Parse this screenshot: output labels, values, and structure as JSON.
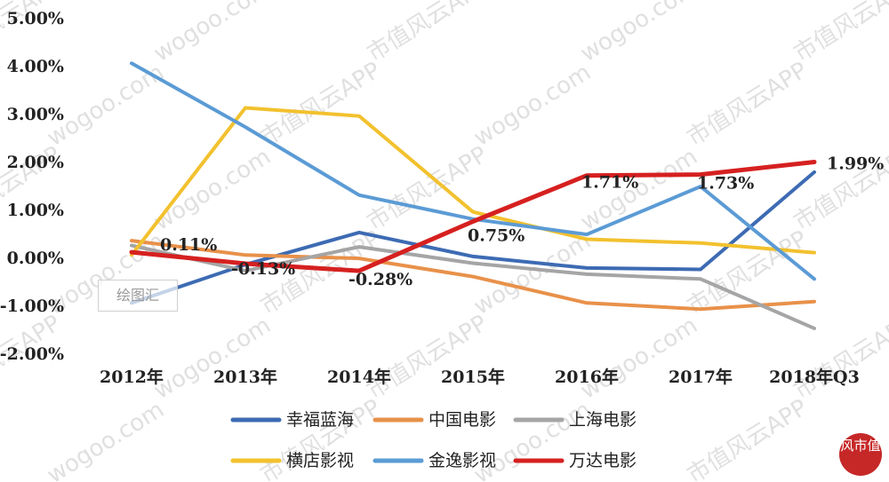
{
  "chart_data": {
    "type": "line",
    "categories": [
      "2012年",
      "2013年",
      "2014年",
      "2015年",
      "2016年",
      "2017年",
      "2018年Q3"
    ],
    "ylim": [
      -2,
      5
    ],
    "yticks": [
      "-2.00%",
      "-1.00%",
      "0.00%",
      "1.00%",
      "2.00%",
      "3.00%",
      "4.00%",
      "5.00%"
    ],
    "grid": false,
    "legend_position": "bottom",
    "series": [
      {
        "name": "幸福蓝海",
        "color": "#3d6bb3",
        "values": [
          -0.95,
          -0.15,
          0.52,
          0.02,
          -0.22,
          -0.25,
          1.78
        ]
      },
      {
        "name": "中国电影",
        "color": "#e8914a",
        "values": [
          0.35,
          0.05,
          -0.02,
          -0.4,
          -0.95,
          -1.08,
          -0.92
        ]
      },
      {
        "name": "上海电影",
        "color": "#a5a5a5",
        "values": [
          0.25,
          -0.28,
          0.22,
          -0.12,
          -0.35,
          -0.45,
          -1.48
        ]
      },
      {
        "name": "横店影视",
        "color": "#f2c12e",
        "values": [
          0.05,
          3.12,
          2.95,
          0.95,
          0.38,
          0.3,
          0.1
        ]
      },
      {
        "name": "金逸影视",
        "color": "#5b9bd5",
        "values": [
          4.05,
          2.72,
          1.3,
          0.8,
          0.48,
          1.48,
          -0.45
        ]
      },
      {
        "name": "万达电影",
        "color": "#d62020",
        "values": [
          0.11,
          -0.13,
          -0.28,
          0.75,
          1.71,
          1.73,
          1.99
        ]
      }
    ],
    "data_labels": [
      {
        "series": "万达电影",
        "index": 0,
        "text": "0.11%"
      },
      {
        "series": "万达电影",
        "index": 1,
        "text": "-0.13%"
      },
      {
        "series": "万达电影",
        "index": 2,
        "text": "-0.28%"
      },
      {
        "series": "万达电影",
        "index": 3,
        "text": "0.75%"
      },
      {
        "series": "万达电影",
        "index": 4,
        "text": "1.71%"
      },
      {
        "series": "万达电影",
        "index": 5,
        "text": "1.73%"
      },
      {
        "series": "万达电影",
        "index": 6,
        "text": "1.99%"
      }
    ]
  },
  "watermark": {
    "texts": [
      "市值风云APP",
      "wogoo.com"
    ],
    "stamp_text": "绘图汇",
    "logo_text": "风市值"
  }
}
